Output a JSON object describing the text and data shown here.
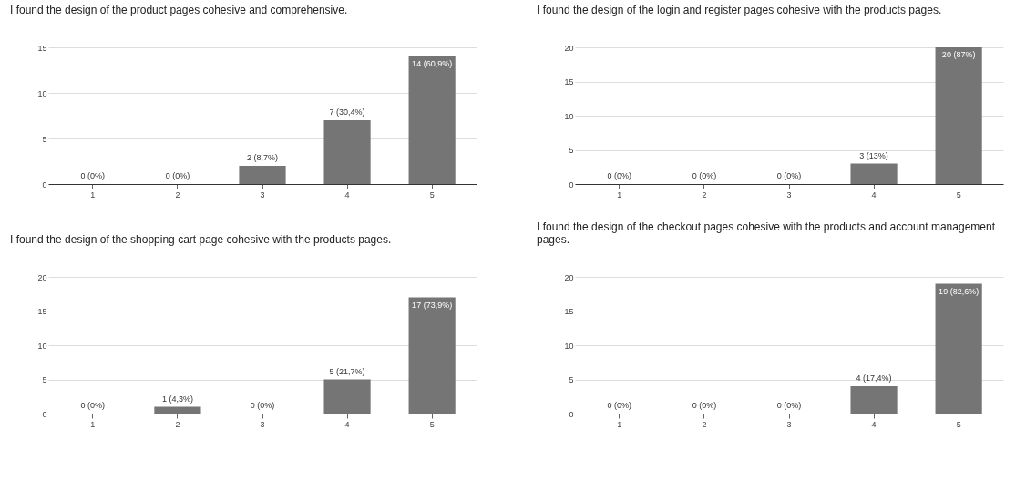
{
  "chart_data": [
    {
      "type": "bar",
      "title": "I found the design of the product pages cohesive and comprehensive.",
      "categories": [
        "1",
        "2",
        "3",
        "4",
        "5"
      ],
      "values": [
        0,
        0,
        2,
        7,
        14
      ],
      "value_labels": [
        "0 (0%)",
        "0 (0%)",
        "2 (8,7%)",
        "7 (30,4%)",
        "14 (60,9%)"
      ],
      "color": "#757575",
      "ylim": [
        0,
        15
      ],
      "yticks": [
        0,
        5,
        10,
        15
      ],
      "grid": "y"
    },
    {
      "type": "bar",
      "title": "I found the design of the login and register pages cohesive with the products pages.",
      "categories": [
        "1",
        "2",
        "3",
        "4",
        "5"
      ],
      "values": [
        0,
        0,
        0,
        3,
        20
      ],
      "value_labels": [
        "0 (0%)",
        "0 (0%)",
        "0 (0%)",
        "3 (13%)",
        "20 (87%)"
      ],
      "color": "#757575",
      "ylim": [
        0,
        20
      ],
      "yticks": [
        0,
        5,
        10,
        15,
        20
      ],
      "grid": "y"
    },
    {
      "type": "bar",
      "title": "I found the design of the shopping cart page cohesive with the products pages.",
      "categories": [
        "1",
        "2",
        "3",
        "4",
        "5"
      ],
      "values": [
        0,
        1,
        0,
        5,
        17
      ],
      "value_labels": [
        "0 (0%)",
        "1 (4,3%)",
        "0 (0%)",
        "5 (21,7%)",
        "17 (73,9%)"
      ],
      "color": "#757575",
      "ylim": [
        0,
        20
      ],
      "yticks": [
        0,
        5,
        10,
        15,
        20
      ],
      "grid": "y"
    },
    {
      "type": "bar",
      "title": "I found the design of the checkout pages cohesive with the products and account management pages.",
      "categories": [
        "1",
        "2",
        "3",
        "4",
        "5"
      ],
      "values": [
        0,
        0,
        0,
        4,
        19
      ],
      "value_labels": [
        "0 (0%)",
        "0 (0%)",
        "0 (0%)",
        "4 (17,4%)",
        "19 (82,6%)"
      ],
      "color": "#757575",
      "ylim": [
        0,
        20
      ],
      "yticks": [
        0,
        5,
        10,
        15,
        20
      ],
      "grid": "y"
    }
  ]
}
